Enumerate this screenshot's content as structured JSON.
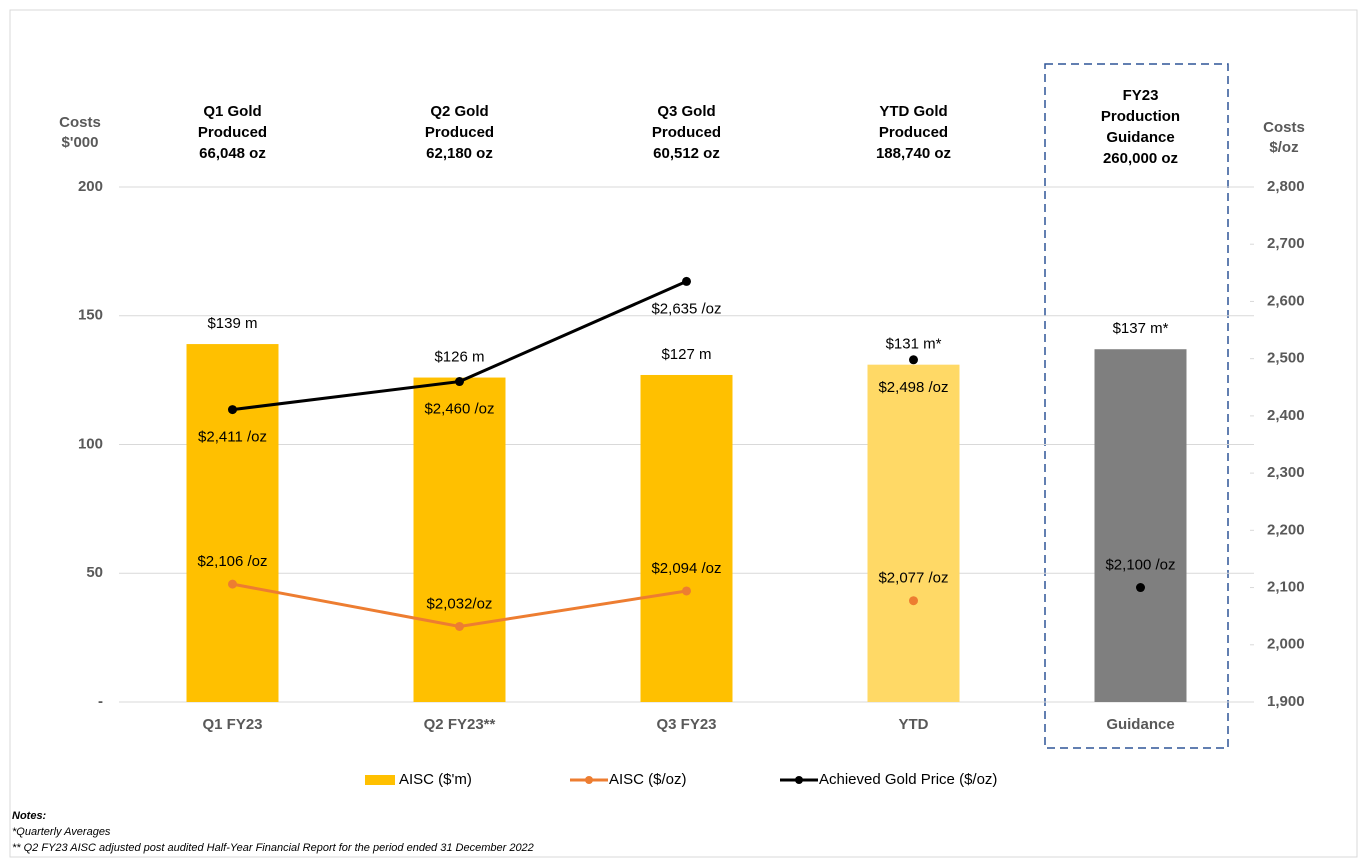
{
  "chart_data": {
    "type": "bar",
    "categories": [
      "Q1 FY23",
      "Q2 FY23**",
      "Q3 FY23",
      "YTD",
      "Guidance"
    ],
    "headers": [
      [
        "Q1 Gold",
        "Produced",
        "66,048 oz"
      ],
      [
        "Q2 Gold",
        "Produced",
        "62,180 oz"
      ],
      [
        "Q3 Gold",
        "Produced",
        "60,512 oz"
      ],
      [
        "YTD Gold",
        "Produced",
        "188,740 oz"
      ],
      [
        "FY23",
        "Production",
        "Guidance",
        "260,000 oz"
      ]
    ],
    "y_label": [
      "Costs",
      "$'000"
    ],
    "y2_label": [
      "Costs",
      "$/oz"
    ],
    "ylim": [
      0,
      200
    ],
    "yticks": [
      {
        "value": 0,
        "label": "-"
      },
      50,
      100,
      150,
      200
    ],
    "y2lim": [
      1900,
      2800
    ],
    "y2ticks": [
      {
        "value": 1900,
        "label": "1,900"
      },
      {
        "value": 2000,
        "label": "2,000"
      },
      {
        "value": 2100,
        "label": "2,100"
      },
      {
        "value": 2200,
        "label": "2,200"
      },
      {
        "value": 2300,
        "label": "2,300"
      },
      {
        "value": 2400,
        "label": "2,400"
      },
      {
        "value": 2500,
        "label": "2,500"
      },
      {
        "value": 2600,
        "label": "2,600"
      },
      {
        "value": 2700,
        "label": "2,700"
      },
      {
        "value": 2800,
        "label": "2,800"
      }
    ],
    "grid": true,
    "legend": "bottom",
    "series": [
      {
        "name": "AISC ($'m)",
        "type": "bar",
        "color": "#FFC000",
        "colors": [
          "#FFC000",
          "#FFC000",
          "#FFC000",
          "#FFD966",
          "#7F7F7F"
        ],
        "values": [
          139,
          126,
          127,
          131,
          137
        ],
        "value_labels": [
          "$139 m",
          "$126 m",
          "$127 m",
          "$131 m*",
          "$137 m*"
        ]
      },
      {
        "name": "AISC ($/oz)",
        "type": "line",
        "axis": "y2",
        "color": "#ED7D31",
        "point_colors": [
          "#ED7D31",
          "#ED7D31",
          "#ED7D31",
          "#ED7D31",
          "#000000"
        ],
        "joined": [
          true,
          true,
          true,
          false,
          false
        ],
        "values": [
          2106,
          2032,
          2094,
          2077,
          2100
        ],
        "value_labels": [
          "$2,106 /oz",
          "$2,032/oz",
          "$2,094 /oz",
          "$2,077 /oz",
          "$2,100 /oz"
        ]
      },
      {
        "name": "Achieved Gold Price ($/oz)",
        "type": "line",
        "axis": "y2",
        "color": "#000000",
        "point_colors": [
          "#000000",
          "#000000",
          "#000000",
          "#000000",
          "#000000"
        ],
        "joined": [
          true,
          true,
          true,
          false,
          false
        ],
        "values": [
          2411,
          2460,
          2635,
          2498,
          null
        ],
        "value_labels": [
          "$2,411 /oz",
          "$2,460 /oz",
          "$2,635 /oz",
          "$2,498 /oz",
          null
        ]
      }
    ],
    "notes": [
      "Notes:",
      "*Quarterly Averages",
      "** Q2 FY23 AISC adjusted post audited Half-Year Financial Report for the period ended 31 December 2022"
    ]
  }
}
